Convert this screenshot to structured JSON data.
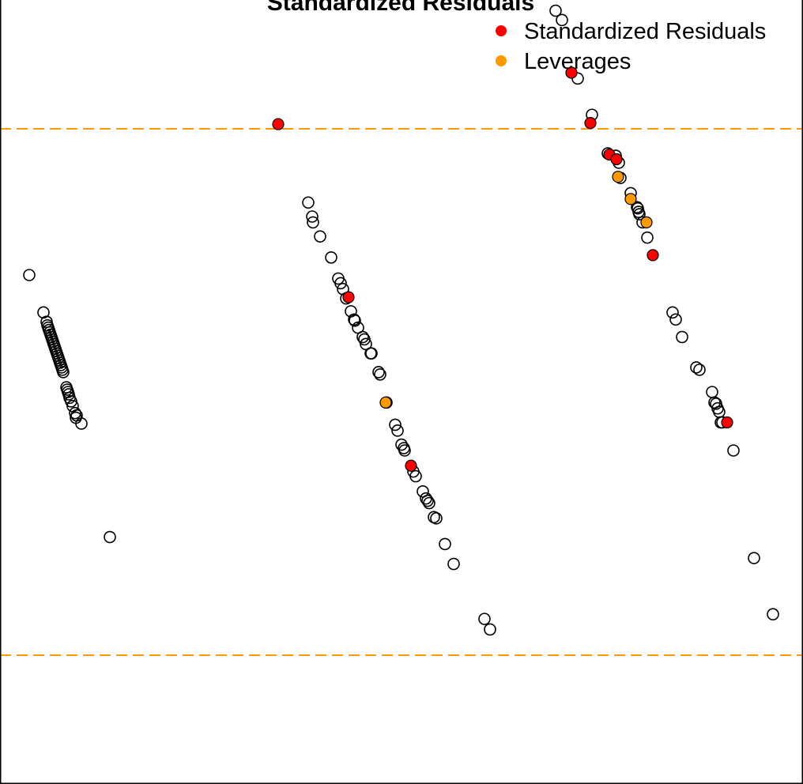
{
  "chart_data": {
    "type": "scatter",
    "title": "Standardized Residuals",
    "xlabel": "",
    "ylabel": "",
    "xlim": [
      0,
      1016
    ],
    "ylim": [
      -3.3,
      3.3
    ],
    "axes_visible": false,
    "grid": false,
    "legend_position": "top-right",
    "reference_lines": [
      {
        "y": 2.25,
        "color": "#FF9900",
        "style": "dashed"
      },
      {
        "y": -2.25,
        "color": "#FF9900",
        "style": "dashed"
      }
    ],
    "colors": {
      "residuals": "#FF0000",
      "leverages": "#FF9900",
      "frame": "#000000",
      "point_outline": "#000000"
    },
    "series": [
      {
        "name": "",
        "style": "open-circle",
        "points": [
          [
            37,
            1.0
          ],
          [
            55,
            0.68
          ],
          [
            59,
            0.6
          ],
          [
            60,
            0.57
          ],
          [
            61,
            0.55
          ],
          [
            62,
            0.53
          ],
          [
            63,
            0.51
          ],
          [
            64,
            0.49
          ],
          [
            65,
            0.47
          ],
          [
            66,
            0.45
          ],
          [
            67,
            0.43
          ],
          [
            68,
            0.41
          ],
          [
            69,
            0.39
          ],
          [
            70,
            0.37
          ],
          [
            71,
            0.35
          ],
          [
            72,
            0.33
          ],
          [
            73,
            0.31
          ],
          [
            74,
            0.29
          ],
          [
            75,
            0.27
          ],
          [
            76,
            0.25
          ],
          [
            77,
            0.23
          ],
          [
            78,
            0.21
          ],
          [
            79,
            0.19
          ],
          [
            80,
            0.17
          ],
          [
            84,
            0.04
          ],
          [
            85,
            0.02
          ],
          [
            86,
            0.0
          ],
          [
            87,
            -0.02
          ],
          [
            88,
            -0.05
          ],
          [
            90,
            -0.08
          ],
          [
            92,
            -0.12
          ],
          [
            95,
            -0.18
          ],
          [
            97,
            -0.2
          ],
          [
            96,
            -0.22
          ],
          [
            103,
            -0.27
          ],
          [
            139,
            -1.24
          ],
          [
            390,
            1.62
          ],
          [
            395,
            1.5
          ],
          [
            396,
            1.45
          ],
          [
            405,
            1.33
          ],
          [
            419,
            1.15
          ],
          [
            428,
            0.97
          ],
          [
            431,
            0.93
          ],
          [
            434,
            0.88
          ],
          [
            438,
            0.8
          ],
          [
            444,
            0.69
          ],
          [
            448,
            0.62
          ],
          [
            449,
            0.61
          ],
          [
            453,
            0.55
          ],
          [
            459,
            0.47
          ],
          [
            461,
            0.45
          ],
          [
            463,
            0.41
          ],
          [
            469,
            0.33
          ],
          [
            470,
            0.33
          ],
          [
            479,
            0.17
          ],
          [
            481,
            0.15
          ],
          [
            489,
            -0.09
          ],
          [
            500,
            -0.28
          ],
          [
            503,
            -0.33
          ],
          [
            508,
            -0.45
          ],
          [
            511,
            -0.48
          ],
          [
            512,
            -0.5
          ],
          [
            523,
            -0.68
          ],
          [
            526,
            -0.72
          ],
          [
            535,
            -0.85
          ],
          [
            539,
            -0.91
          ],
          [
            541,
            -0.93
          ],
          [
            543,
            -0.95
          ],
          [
            549,
            -1.07
          ],
          [
            552,
            -1.08
          ],
          [
            563,
            -1.3
          ],
          [
            574,
            -1.47
          ],
          [
            613,
            -1.94
          ],
          [
            620,
            -2.03
          ],
          [
            703,
            3.26
          ],
          [
            711,
            3.18
          ],
          [
            731,
            2.68
          ],
          [
            749,
            2.37
          ],
          [
            769,
            2.04
          ],
          [
            779,
            2.02
          ],
          [
            783,
            1.96
          ],
          [
            785,
            1.83
          ],
          [
            798,
            1.7
          ],
          [
            806,
            1.58
          ],
          [
            807,
            1.57
          ],
          [
            808,
            1.54
          ],
          [
            809,
            1.52
          ],
          [
            813,
            1.45
          ],
          [
            819,
            1.32
          ],
          [
            851,
            0.68
          ],
          [
            855,
            0.62
          ],
          [
            863,
            0.47
          ],
          [
            881,
            0.21
          ],
          [
            885,
            0.19
          ],
          [
            901,
            0.0
          ],
          [
            904,
            -0.09
          ],
          [
            906,
            -0.1
          ],
          [
            908,
            -0.14
          ],
          [
            910,
            -0.17
          ],
          [
            912,
            -0.26
          ],
          [
            914,
            -0.26
          ],
          [
            928,
            -0.5
          ],
          [
            954,
            -1.42
          ],
          [
            978,
            -1.9
          ]
        ]
      },
      {
        "name": "Standardized Residuals",
        "style": "filled-circle",
        "color": "#FF0000",
        "points": [
          [
            352,
            2.29
          ],
          [
            441,
            0.81
          ],
          [
            520,
            -0.63
          ],
          [
            723,
            2.73
          ],
          [
            747,
            2.3
          ],
          [
            771,
            2.03
          ],
          [
            780,
            1.99
          ],
          [
            826,
            1.17
          ],
          [
            920,
            -0.26
          ]
        ]
      },
      {
        "name": "Leverages",
        "style": "filled-circle",
        "color": "#FF9900",
        "points": [
          [
            488,
            -0.09
          ],
          [
            782,
            1.84
          ],
          [
            798,
            1.65
          ],
          [
            818,
            1.45
          ]
        ]
      }
    ]
  }
}
